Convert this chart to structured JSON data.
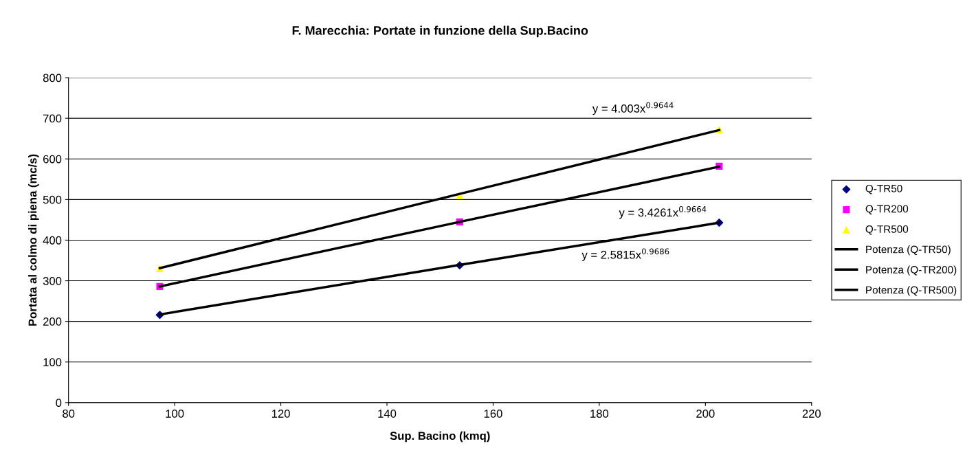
{
  "chart_data": {
    "type": "scatter",
    "title": "F. Marecchia: Portate in funzione della Sup.Bacino",
    "xlabel": "Sup. Bacino (kmq)",
    "ylabel": "Portata al colmo di piena (mc/s)",
    "x": [
      97.2,
      153.7,
      202.6
    ],
    "series": [
      {
        "name": "Q-TR50",
        "marker": "diamond",
        "color": "#000080",
        "values": [
          216,
          338,
          443
        ]
      },
      {
        "name": "Q-TR200",
        "marker": "square",
        "color": "#ff00ff",
        "values": [
          286,
          445,
          582
        ]
      },
      {
        "name": "Q-TR500",
        "marker": "triangle",
        "color": "#ffff00",
        "values": [
          330,
          509,
          672
        ]
      },
      {
        "name": "Potenza (Q-TR50)",
        "type": "line",
        "marker": "none",
        "color": "#000000",
        "x": [
          97.2,
          153.7,
          202.6
        ],
        "values": [
          217,
          339,
          443
        ]
      },
      {
        "name": "Potenza (Q-TR200)",
        "type": "line",
        "marker": "none",
        "color": "#000000",
        "x": [
          97.2,
          153.7,
          202.6
        ],
        "values": [
          286,
          445,
          581
        ]
      },
      {
        "name": "Potenza (Q-TR500)",
        "type": "line",
        "marker": "none",
        "color": "#000000",
        "x": [
          97.2,
          153.7,
          202.6
        ],
        "values": [
          331,
          514,
          671
        ]
      }
    ],
    "annotations": [
      "y = 4.003x$^{0.9644}$",
      "y = 3.4261x$^{0.9664}$",
      "y = 2.5815x$^{0.9686}$"
    ],
    "xlim": [
      80,
      220
    ],
    "xticks": [
      80,
      100,
      120,
      140,
      160,
      180,
      200,
      220
    ],
    "ylim": [
      0,
      800
    ],
    "yticks": [
      0,
      100,
      200,
      300,
      400,
      500,
      600,
      700,
      800
    ],
    "grid": "y",
    "legend": "right"
  }
}
